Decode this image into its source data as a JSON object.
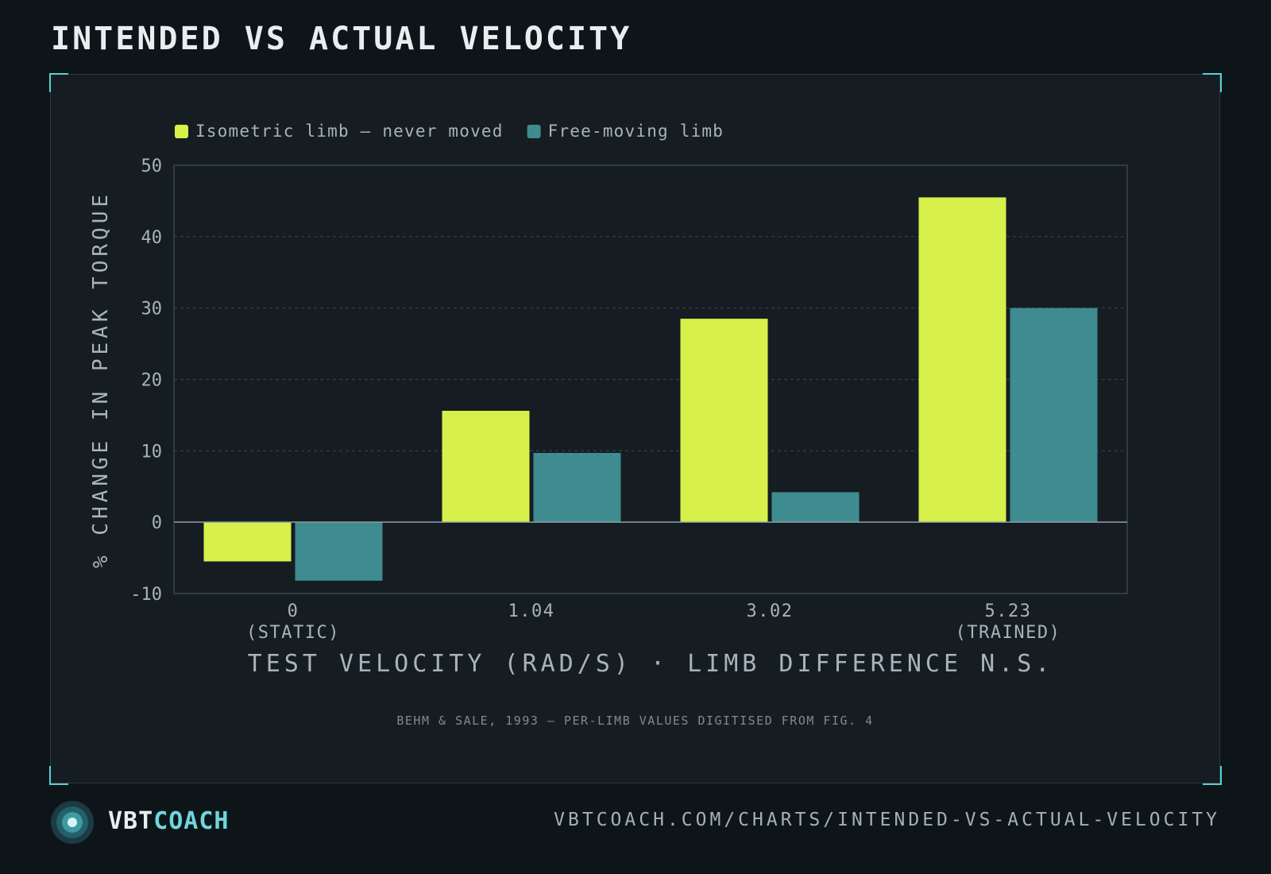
{
  "page": {
    "title": "INTENDED VS ACTUAL VELOCITY",
    "source_note": "BEHM & SALE, 1993 — PER-LIMB VALUES DIGITISED FROM FIG. 4"
  },
  "footer": {
    "brand_part1": "VBT",
    "brand_part2": "COACH",
    "url": "VBTCOACH.COM/CHARTS/INTENDED-VS-ACTUAL-VELOCITY",
    "logo_icon": "concentric-circle-logo-icon"
  },
  "colors": {
    "background": "#0d1519",
    "panel": "#151d23",
    "accent": "#5ad0d3",
    "isometric": "#d8f04a",
    "free_moving": "#3e8b90"
  },
  "chart_data": {
    "type": "bar",
    "categories": [
      [
        "0",
        "(STATIC)"
      ],
      [
        "1.04",
        ""
      ],
      [
        "3.02",
        ""
      ],
      [
        "5.23",
        "(TRAINED)"
      ]
    ],
    "series": [
      {
        "name": "Isometric limb — never moved",
        "values": [
          -5.5,
          15.6,
          28.5,
          45.5
        ],
        "color": "#d8f04a"
      },
      {
        "name": "Free-moving limb",
        "values": [
          -8.2,
          9.7,
          4.2,
          30.0
        ],
        "color": "#3e8b90"
      }
    ],
    "xlabel": "TEST VELOCITY (RAD/S) · LIMB DIFFERENCE N.S.",
    "ylabel": "% CHANGE IN PEAK TORQUE",
    "ylim": [
      -10,
      50
    ],
    "yticks": [
      -10,
      0,
      10,
      20,
      30,
      40,
      50
    ],
    "grid": true,
    "legend_position": "top-left"
  }
}
